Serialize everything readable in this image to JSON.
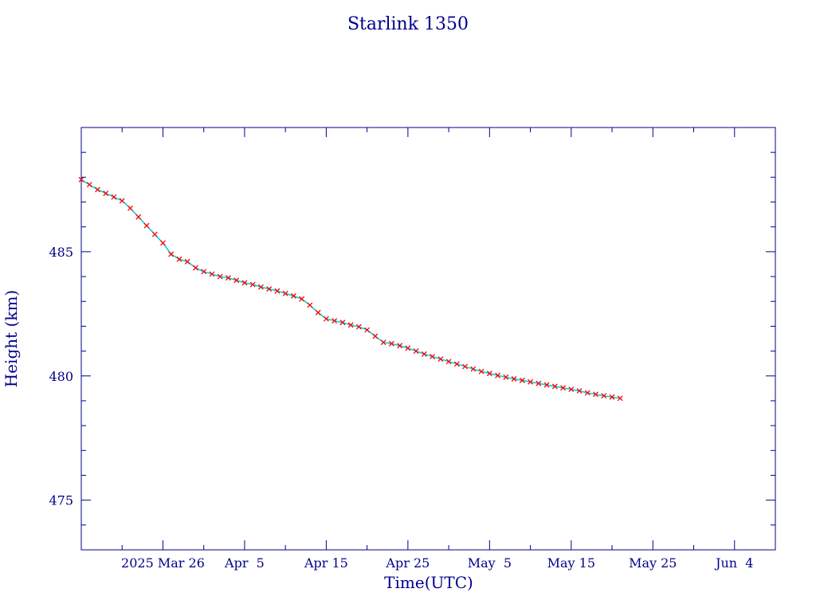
{
  "chart_data": {
    "type": "scatter",
    "title": "Starlink 1350",
    "xlabel": "Time(UTC)",
    "ylabel": "Height (km)",
    "ylim": [
      473,
      490
    ],
    "xlim": [
      "2025-03-16",
      "2025-06-09"
    ],
    "x_tick_labels": [
      {
        "date": "2025-03-26",
        "label": "2025 Mar 26"
      },
      {
        "date": "2025-04-05",
        "label": "Apr  5"
      },
      {
        "date": "2025-04-15",
        "label": "Apr 15"
      },
      {
        "date": "2025-04-25",
        "label": "Apr 25"
      },
      {
        "date": "2025-05-05",
        "label": "May  5"
      },
      {
        "date": "2025-05-15",
        "label": "May 15"
      },
      {
        "date": "2025-05-25",
        "label": "May 25"
      },
      {
        "date": "2025-06-04",
        "label": "Jun  4"
      }
    ],
    "y_ticks": [
      475,
      480,
      485
    ],
    "grid": false,
    "series": [
      {
        "marker": "x",
        "color": "#FF0000",
        "line_color": "#00CED1",
        "points": [
          [
            "2025-03-16",
            487.9
          ],
          [
            "2025-03-17",
            487.7
          ],
          [
            "2025-03-18",
            487.5
          ],
          [
            "2025-03-19",
            487.35
          ],
          [
            "2025-03-20",
            487.2
          ],
          [
            "2025-03-21",
            487.05
          ],
          [
            "2025-03-22",
            486.75
          ],
          [
            "2025-03-23",
            486.4
          ],
          [
            "2025-03-24",
            486.05
          ],
          [
            "2025-03-25",
            485.7
          ],
          [
            "2025-03-26",
            485.35
          ],
          [
            "2025-03-27",
            484.9
          ],
          [
            "2025-03-28",
            484.7
          ],
          [
            "2025-03-29",
            484.6
          ],
          [
            "2025-03-30",
            484.35
          ],
          [
            "2025-03-31",
            484.2
          ],
          [
            "2025-04-01",
            484.1
          ],
          [
            "2025-04-02",
            484.0
          ],
          [
            "2025-04-03",
            483.95
          ],
          [
            "2025-04-04",
            483.85
          ],
          [
            "2025-04-05",
            483.75
          ],
          [
            "2025-04-06",
            483.68
          ],
          [
            "2025-04-07",
            483.58
          ],
          [
            "2025-04-08",
            483.5
          ],
          [
            "2025-04-09",
            483.42
          ],
          [
            "2025-04-10",
            483.32
          ],
          [
            "2025-04-11",
            483.22
          ],
          [
            "2025-04-12",
            483.1
          ],
          [
            "2025-04-13",
            482.85
          ],
          [
            "2025-04-14",
            482.55
          ],
          [
            "2025-04-15",
            482.3
          ],
          [
            "2025-04-16",
            482.22
          ],
          [
            "2025-04-17",
            482.15
          ],
          [
            "2025-04-18",
            482.05
          ],
          [
            "2025-04-19",
            481.98
          ],
          [
            "2025-04-20",
            481.85
          ],
          [
            "2025-04-21",
            481.6
          ],
          [
            "2025-04-22",
            481.35
          ],
          [
            "2025-04-23",
            481.3
          ],
          [
            "2025-04-24",
            481.22
          ],
          [
            "2025-04-25",
            481.12
          ],
          [
            "2025-04-26",
            481.0
          ],
          [
            "2025-04-27",
            480.88
          ],
          [
            "2025-04-28",
            480.78
          ],
          [
            "2025-04-29",
            480.68
          ],
          [
            "2025-04-30",
            480.58
          ],
          [
            "2025-05-01",
            480.48
          ],
          [
            "2025-05-02",
            480.38
          ],
          [
            "2025-05-03",
            480.28
          ],
          [
            "2025-05-04",
            480.18
          ],
          [
            "2025-05-05",
            480.1
          ],
          [
            "2025-05-06",
            480.02
          ],
          [
            "2025-05-07",
            479.95
          ],
          [
            "2025-05-08",
            479.88
          ],
          [
            "2025-05-09",
            479.82
          ],
          [
            "2025-05-10",
            479.76
          ],
          [
            "2025-05-11",
            479.7
          ],
          [
            "2025-05-12",
            479.64
          ],
          [
            "2025-05-13",
            479.58
          ],
          [
            "2025-05-14",
            479.52
          ],
          [
            "2025-05-15",
            479.46
          ],
          [
            "2025-05-16",
            479.4
          ],
          [
            "2025-05-17",
            479.32
          ],
          [
            "2025-05-18",
            479.26
          ],
          [
            "2025-05-19",
            479.2
          ],
          [
            "2025-05-20",
            479.15
          ],
          [
            "2025-05-21",
            479.1
          ]
        ]
      }
    ]
  }
}
